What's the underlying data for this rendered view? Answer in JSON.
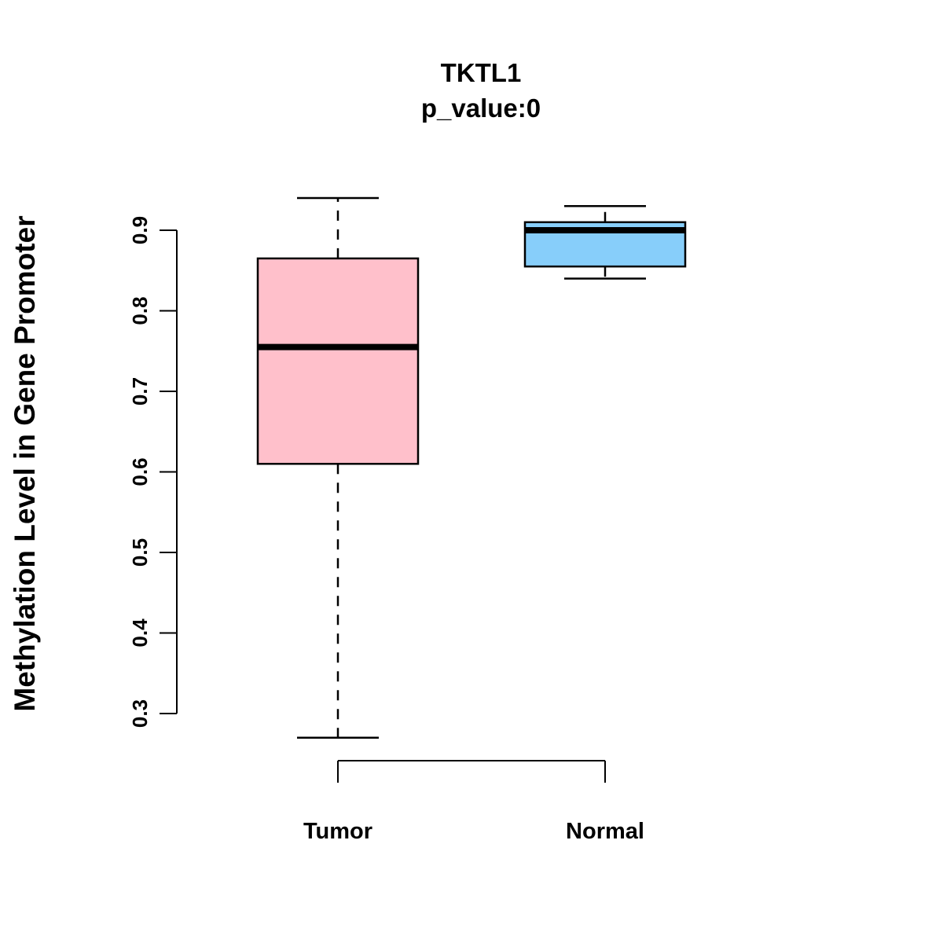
{
  "chart_data": {
    "type": "boxplot",
    "title": "TKTL1",
    "subtitle": "p_value:0",
    "ylabel": "Methylation Level in Gene Promoter",
    "xlabel": "",
    "categories": [
      "Tumor",
      "Normal"
    ],
    "yticks": [
      0.3,
      0.4,
      0.5,
      0.6,
      0.7,
      0.8,
      0.9
    ],
    "ylim": [
      0.25,
      0.97
    ],
    "grid": false,
    "legend": "none",
    "groups": [
      {
        "name": "Tumor",
        "lower_whisker": 0.27,
        "q1": 0.61,
        "median": 0.755,
        "q3": 0.865,
        "upper_whisker": 0.94,
        "color": "#FFC0CB"
      },
      {
        "name": "Normal",
        "lower_whisker": 0.84,
        "q1": 0.855,
        "median": 0.9,
        "q3": 0.91,
        "upper_whisker": 0.93,
        "color": "#87CEFA"
      }
    ]
  }
}
